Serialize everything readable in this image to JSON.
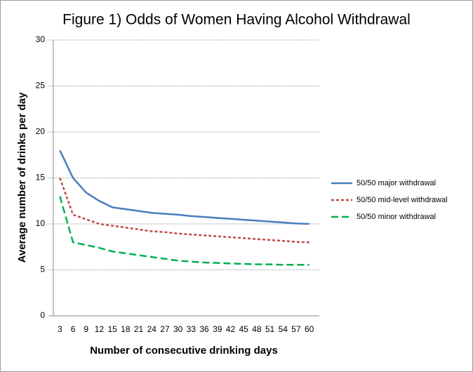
{
  "chart_data": {
    "type": "line",
    "title": "Figure 1) Odds of Women Having Alcohol Withdrawal",
    "x_label": "Number of consecutive drinking days",
    "y_label": "Average number of drinks per day",
    "categories": [
      "3",
      "6",
      "9",
      "12",
      "15",
      "18",
      "21",
      "24",
      "27",
      "30",
      "33",
      "36",
      "39",
      "42",
      "45",
      "48",
      "51",
      "54",
      "57",
      "60"
    ],
    "series": [
      {
        "name": "50/50 major withdrawal",
        "color": "#4a7ebb",
        "style": "solid",
        "values": [
          18,
          15,
          13.4,
          12.5,
          11.8,
          11.6,
          11.4,
          11.2,
          11.1,
          11.0,
          10.85,
          10.75,
          10.65,
          10.55,
          10.45,
          10.35,
          10.25,
          10.15,
          10.05,
          10.0
        ]
      },
      {
        "name": "50/50 mid-level withdrawal",
        "color": "#be4b48",
        "style": "dotted",
        "values": [
          15,
          11,
          10.5,
          10,
          9.8,
          9.6,
          9.4,
          9.2,
          9.1,
          8.95,
          8.85,
          8.75,
          8.65,
          8.55,
          8.45,
          8.35,
          8.25,
          8.15,
          8.05,
          8.0
        ]
      },
      {
        "name": "50/50 minor withdrawal",
        "color": "#00b050",
        "style": "dashed",
        "values": [
          13,
          8,
          7.7,
          7.4,
          7.0,
          6.8,
          6.6,
          6.4,
          6.2,
          6.0,
          5.9,
          5.8,
          5.75,
          5.7,
          5.65,
          5.6,
          5.6,
          5.55,
          5.55,
          5.55
        ]
      }
    ],
    "ylim": [
      0,
      30
    ],
    "yticks": [
      0,
      5,
      10,
      15,
      20,
      25,
      30
    ],
    "grid": true,
    "legend": "right"
  }
}
